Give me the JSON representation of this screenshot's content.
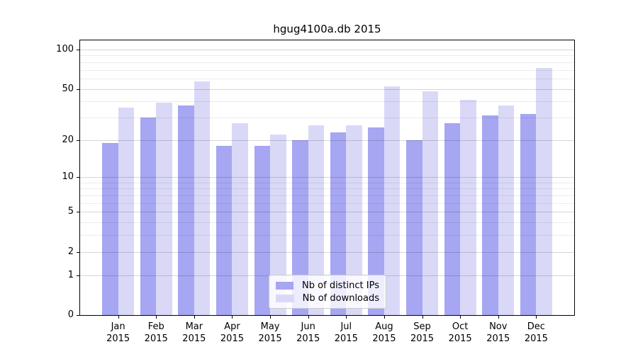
{
  "figure": {
    "background": "#ffffff"
  },
  "chart_data": {
    "type": "bar",
    "title": "hgug4100a.db 2015",
    "categories": [
      "Jan 2015",
      "Feb 2015",
      "Mar 2015",
      "Apr 2015",
      "May 2015",
      "Jun 2015",
      "Jul 2015",
      "Aug 2015",
      "Sep 2015",
      "Oct 2015",
      "Nov 2015",
      "Dec 2015"
    ],
    "series": [
      {
        "name": "Nb of distinct IPs",
        "color": "#a6a6f2",
        "values": [
          19,
          30,
          37,
          18,
          18,
          20,
          23,
          25,
          20,
          27,
          31,
          32
        ]
      },
      {
        "name": "Nb of downloads",
        "color": "#d9d9f7",
        "values": [
          36,
          39,
          57,
          27,
          22,
          26,
          26,
          52,
          48,
          41,
          37,
          72
        ]
      }
    ],
    "xlabel": "",
    "ylabel": "",
    "y_scale": "log10(value+1)",
    "y_ticks": [
      100,
      50,
      20,
      10,
      5,
      2,
      1,
      0
    ],
    "y_major_gridlines": [
      100,
      50,
      20,
      10,
      5,
      2,
      1
    ],
    "y_minor_gridlines": [
      90,
      80,
      70,
      60,
      40,
      30,
      9,
      8,
      7,
      6,
      4,
      3
    ],
    "grid": true,
    "legend_position": "lower center",
    "axis_color": "#000000",
    "major_grid_color": "#d6d6d6",
    "minor_grid_color": "#ececec"
  }
}
